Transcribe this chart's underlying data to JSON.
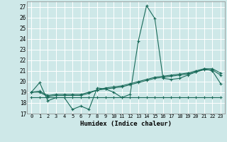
{
  "xlabel": "Humidex (Indice chaleur)",
  "xlim": [
    -0.5,
    23.5
  ],
  "ylim": [
    17,
    27.5
  ],
  "yticks": [
    17,
    18,
    19,
    20,
    21,
    22,
    23,
    24,
    25,
    26,
    27
  ],
  "xticks": [
    0,
    1,
    2,
    3,
    4,
    5,
    6,
    7,
    8,
    9,
    10,
    11,
    12,
    13,
    14,
    15,
    16,
    17,
    18,
    19,
    20,
    21,
    22,
    23
  ],
  "bg_color": "#cee8e8",
  "line_color": "#1a6b5a",
  "grid_color": "#ffffff",
  "series": [
    {
      "x": [
        0,
        1,
        2,
        3,
        4,
        5,
        6,
        7,
        8,
        9,
        10,
        11,
        12,
        13,
        14,
        15,
        16,
        17,
        18,
        19,
        20,
        21,
        22,
        23
      ],
      "y": [
        19.0,
        19.9,
        18.2,
        18.5,
        18.5,
        17.4,
        17.7,
        17.4,
        19.4,
        19.3,
        19.0,
        18.5,
        18.8,
        23.8,
        27.1,
        25.9,
        20.3,
        20.2,
        20.3,
        20.6,
        20.9,
        21.2,
        21.0,
        19.8
      ]
    },
    {
      "x": [
        0,
        1,
        2,
        3,
        4,
        5,
        6,
        7,
        8,
        9,
        10,
        11,
        12,
        13,
        14,
        15,
        16,
        17,
        18,
        19,
        20,
        21,
        22,
        23
      ],
      "y": [
        18.5,
        18.5,
        18.5,
        18.5,
        18.5,
        18.5,
        18.5,
        18.5,
        18.5,
        18.5,
        18.5,
        18.5,
        18.5,
        18.5,
        18.5,
        18.5,
        18.5,
        18.5,
        18.5,
        18.5,
        18.5,
        18.5,
        18.5,
        18.5
      ]
    },
    {
      "x": [
        0,
        1,
        2,
        3,
        4,
        5,
        6,
        7,
        8,
        9,
        10,
        11,
        12,
        13,
        14,
        15,
        16,
        17,
        18,
        19,
        20,
        21,
        22,
        23
      ],
      "y": [
        19.0,
        19.0,
        18.6,
        18.7,
        18.7,
        18.7,
        18.7,
        18.9,
        19.2,
        19.3,
        19.4,
        19.5,
        19.7,
        19.9,
        20.1,
        20.3,
        20.4,
        20.5,
        20.6,
        20.7,
        20.9,
        21.1,
        21.1,
        20.6
      ]
    },
    {
      "x": [
        0,
        1,
        2,
        3,
        4,
        5,
        6,
        7,
        8,
        9,
        10,
        11,
        12,
        13,
        14,
        15,
        16,
        17,
        18,
        19,
        20,
        21,
        22,
        23
      ],
      "y": [
        19.0,
        19.1,
        18.7,
        18.8,
        18.8,
        18.8,
        18.8,
        19.0,
        19.2,
        19.4,
        19.5,
        19.6,
        19.8,
        20.0,
        20.2,
        20.4,
        20.5,
        20.6,
        20.7,
        20.8,
        21.0,
        21.2,
        21.2,
        20.8
      ]
    }
  ]
}
